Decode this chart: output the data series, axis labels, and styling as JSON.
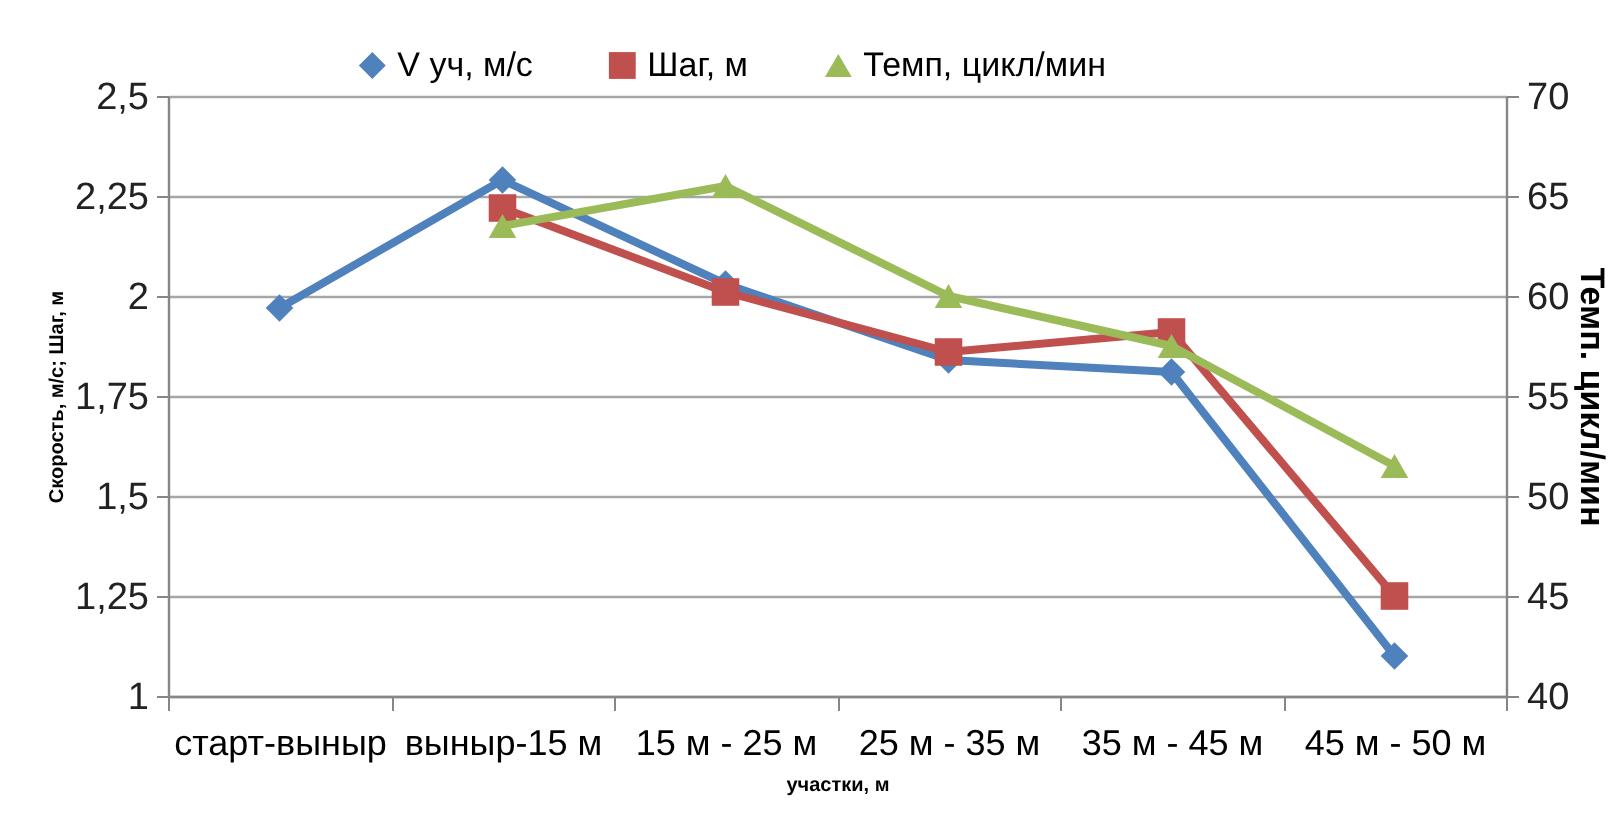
{
  "chart_data": {
    "type": "line",
    "xlabel": "участки, м",
    "ylabel": "Скорость, м/с; Шаг, м",
    "y2label": "Темп. цикл/мин",
    "categories": [
      "старт-выныр",
      "выныр-15 м",
      "15 м - 25 м",
      "25 м - 35 м",
      "35 м - 45 м",
      "45 м - 50 м"
    ],
    "series": [
      {
        "name": "V уч, м/с",
        "color": "#4f81bd",
        "marker": "diamond",
        "line_style": "solid",
        "values": [
          1.97,
          2.29,
          2.03,
          1.84,
          1.81,
          1.1
        ]
      },
      {
        "name": "Шаг, м",
        "color": "#c0504d",
        "marker": "square",
        "line_style": "solid",
        "values": [
          null,
          2.22,
          2.01,
          1.86,
          1.91,
          1.25
        ]
      },
      {
        "name": "Темп, цикл/мин",
        "color": "#9bbb59",
        "marker": "triangle",
        "line_style": "solid",
        "axis": "y2",
        "values": [
          null,
          63.5,
          65.5,
          60,
          57.5,
          51.5
        ]
      }
    ],
    "ylim": [
      1,
      2.5
    ],
    "yticks": [
      1,
      {
        "value": 1.25,
        "label": "1,25"
      },
      {
        "value": 1.5,
        "label": "1,5"
      },
      {
        "value": 1.75,
        "label": "1,75"
      },
      2,
      {
        "value": 2.25,
        "label": "2,25"
      },
      {
        "value": 2.5,
        "label": "2,5"
      }
    ],
    "y2lim": [
      40,
      70
    ],
    "y2ticks": [
      40,
      45,
      50,
      55,
      60,
      65,
      70
    ],
    "grid": "y",
    "legend": "top"
  }
}
